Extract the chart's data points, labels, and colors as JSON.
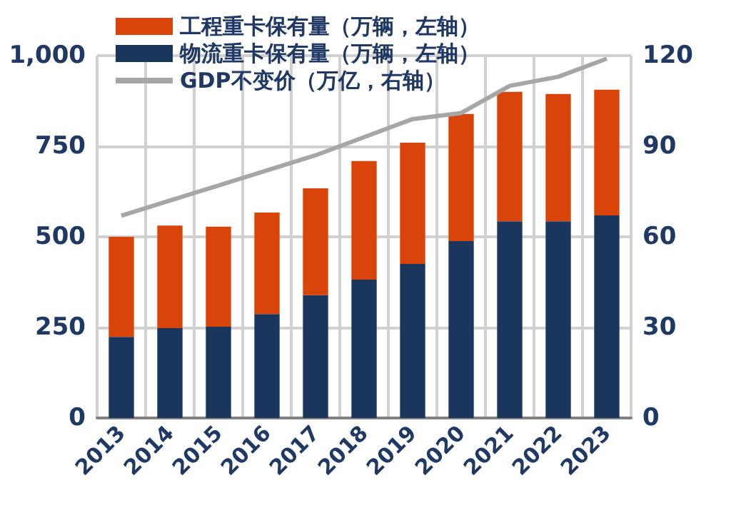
{
  "chart_data": {
    "type": "bar",
    "stacked": true,
    "categories": [
      "2013",
      "2014",
      "2015",
      "2016",
      "2017",
      "2018",
      "2019",
      "2020",
      "2021",
      "2022",
      "2023"
    ],
    "series": [
      {
        "name": "物流重卡保有量（万辆，左轴）",
        "color": "#1a365d",
        "values": [
          224,
          248,
          252,
          287,
          339,
          382,
          425,
          488,
          543,
          543,
          559
        ]
      },
      {
        "name": "工程重卡保有量（万辆，左轴）",
        "color": "#d9440b",
        "values": [
          276,
          283,
          276,
          280,
          295,
          327,
          335,
          351,
          357,
          351,
          347
        ]
      },
      {
        "name": "GDP不变价（万亿，右轴）",
        "type": "line",
        "axis": "y2",
        "color": "#a6a6a6",
        "values": [
          67,
          72,
          77,
          82,
          87,
          93,
          99,
          101,
          110,
          113,
          119
        ]
      }
    ],
    "ylim": [
      0,
      1000
    ],
    "yticks": [
      0,
      {
        "value": 250,
        "label": "250"
      },
      {
        "value": 500,
        "label": "500"
      },
      {
        "value": 750,
        "label": "750"
      },
      {
        "value": 1000,
        "label": "1,000"
      }
    ],
    "y2lim": [
      0,
      120
    ],
    "y2ticks": [
      0,
      30,
      60,
      90,
      120
    ],
    "grid": true,
    "legend": "top left",
    "marker": "none"
  }
}
